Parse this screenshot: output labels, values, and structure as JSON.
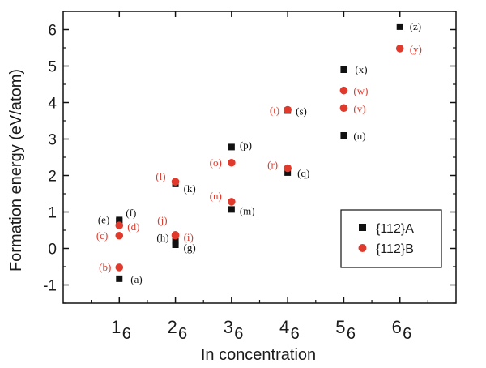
{
  "chart_data": {
    "type": "scatter",
    "xlabel": "In concentration",
    "ylabel": "Formation energy (eV/atom)",
    "xlim": [
      0,
      7
    ],
    "ylim": [
      -1.5,
      6.5
    ],
    "yticks": [
      "-1",
      "0",
      "1",
      "2",
      "3",
      "4",
      "5",
      "6"
    ],
    "xticks": [
      {
        "num": "1",
        "den": "6",
        "value": 1
      },
      {
        "num": "2",
        "den": "6",
        "value": 2
      },
      {
        "num": "3",
        "den": "6",
        "value": 3
      },
      {
        "num": "4",
        "den": "6",
        "value": 4
      },
      {
        "num": "5",
        "den": "6",
        "value": 5
      },
      {
        "num": "6",
        "den": "6",
        "value": 6
      }
    ],
    "series": [
      {
        "name": "{112}A",
        "marker": "square",
        "color": "#111111",
        "points": [
          {
            "x": 1,
            "y": -0.83,
            "label": "(a)"
          },
          {
            "x": 1,
            "y": 0.78,
            "label": "(e)"
          },
          {
            "x": 1,
            "y": 0.75,
            "label": "(f)"
          },
          {
            "x": 2,
            "y": 0.1,
            "label": "(g)"
          },
          {
            "x": 2,
            "y": 0.2,
            "label": "(h)"
          },
          {
            "x": 2,
            "y": 1.77,
            "label": "(k)"
          },
          {
            "x": 3,
            "y": 1.07,
            "label": "(m)"
          },
          {
            "x": 3,
            "y": 2.78,
            "label": "(p)"
          },
          {
            "x": 4,
            "y": 2.08,
            "label": "(q)"
          },
          {
            "x": 4,
            "y": 3.78,
            "label": "(s)"
          },
          {
            "x": 5,
            "y": 3.1,
            "label": "(u)"
          },
          {
            "x": 5,
            "y": 4.9,
            "label": "(x)"
          },
          {
            "x": 6,
            "y": 6.08,
            "label": "(z)"
          }
        ]
      },
      {
        "name": "{112}B",
        "marker": "circle",
        "color": "#e03a2c",
        "points": [
          {
            "x": 1,
            "y": -0.52,
            "label": "(b)"
          },
          {
            "x": 1,
            "y": 0.35,
            "label": "(c)"
          },
          {
            "x": 1,
            "y": 0.63,
            "label": "(d)"
          },
          {
            "x": 2,
            "y": 0.35,
            "label": "(i)"
          },
          {
            "x": 2,
            "y": 0.37,
            "label": "(j)"
          },
          {
            "x": 2,
            "y": 1.83,
            "label": "(l)"
          },
          {
            "x": 3,
            "y": 1.28,
            "label": "(n)"
          },
          {
            "x": 3,
            "y": 2.35,
            "label": "(o)"
          },
          {
            "x": 4,
            "y": 2.2,
            "label": "(r)"
          },
          {
            "x": 4,
            "y": 3.8,
            "label": "(t)"
          },
          {
            "x": 5,
            "y": 3.85,
            "label": "(v)"
          },
          {
            "x": 5,
            "y": 4.33,
            "label": "(w)"
          },
          {
            "x": 6,
            "y": 5.48,
            "label": "(y)"
          }
        ]
      }
    ],
    "legend": {
      "position": "right-bottom",
      "entries": [
        "{112}A",
        "{112}B"
      ]
    }
  }
}
